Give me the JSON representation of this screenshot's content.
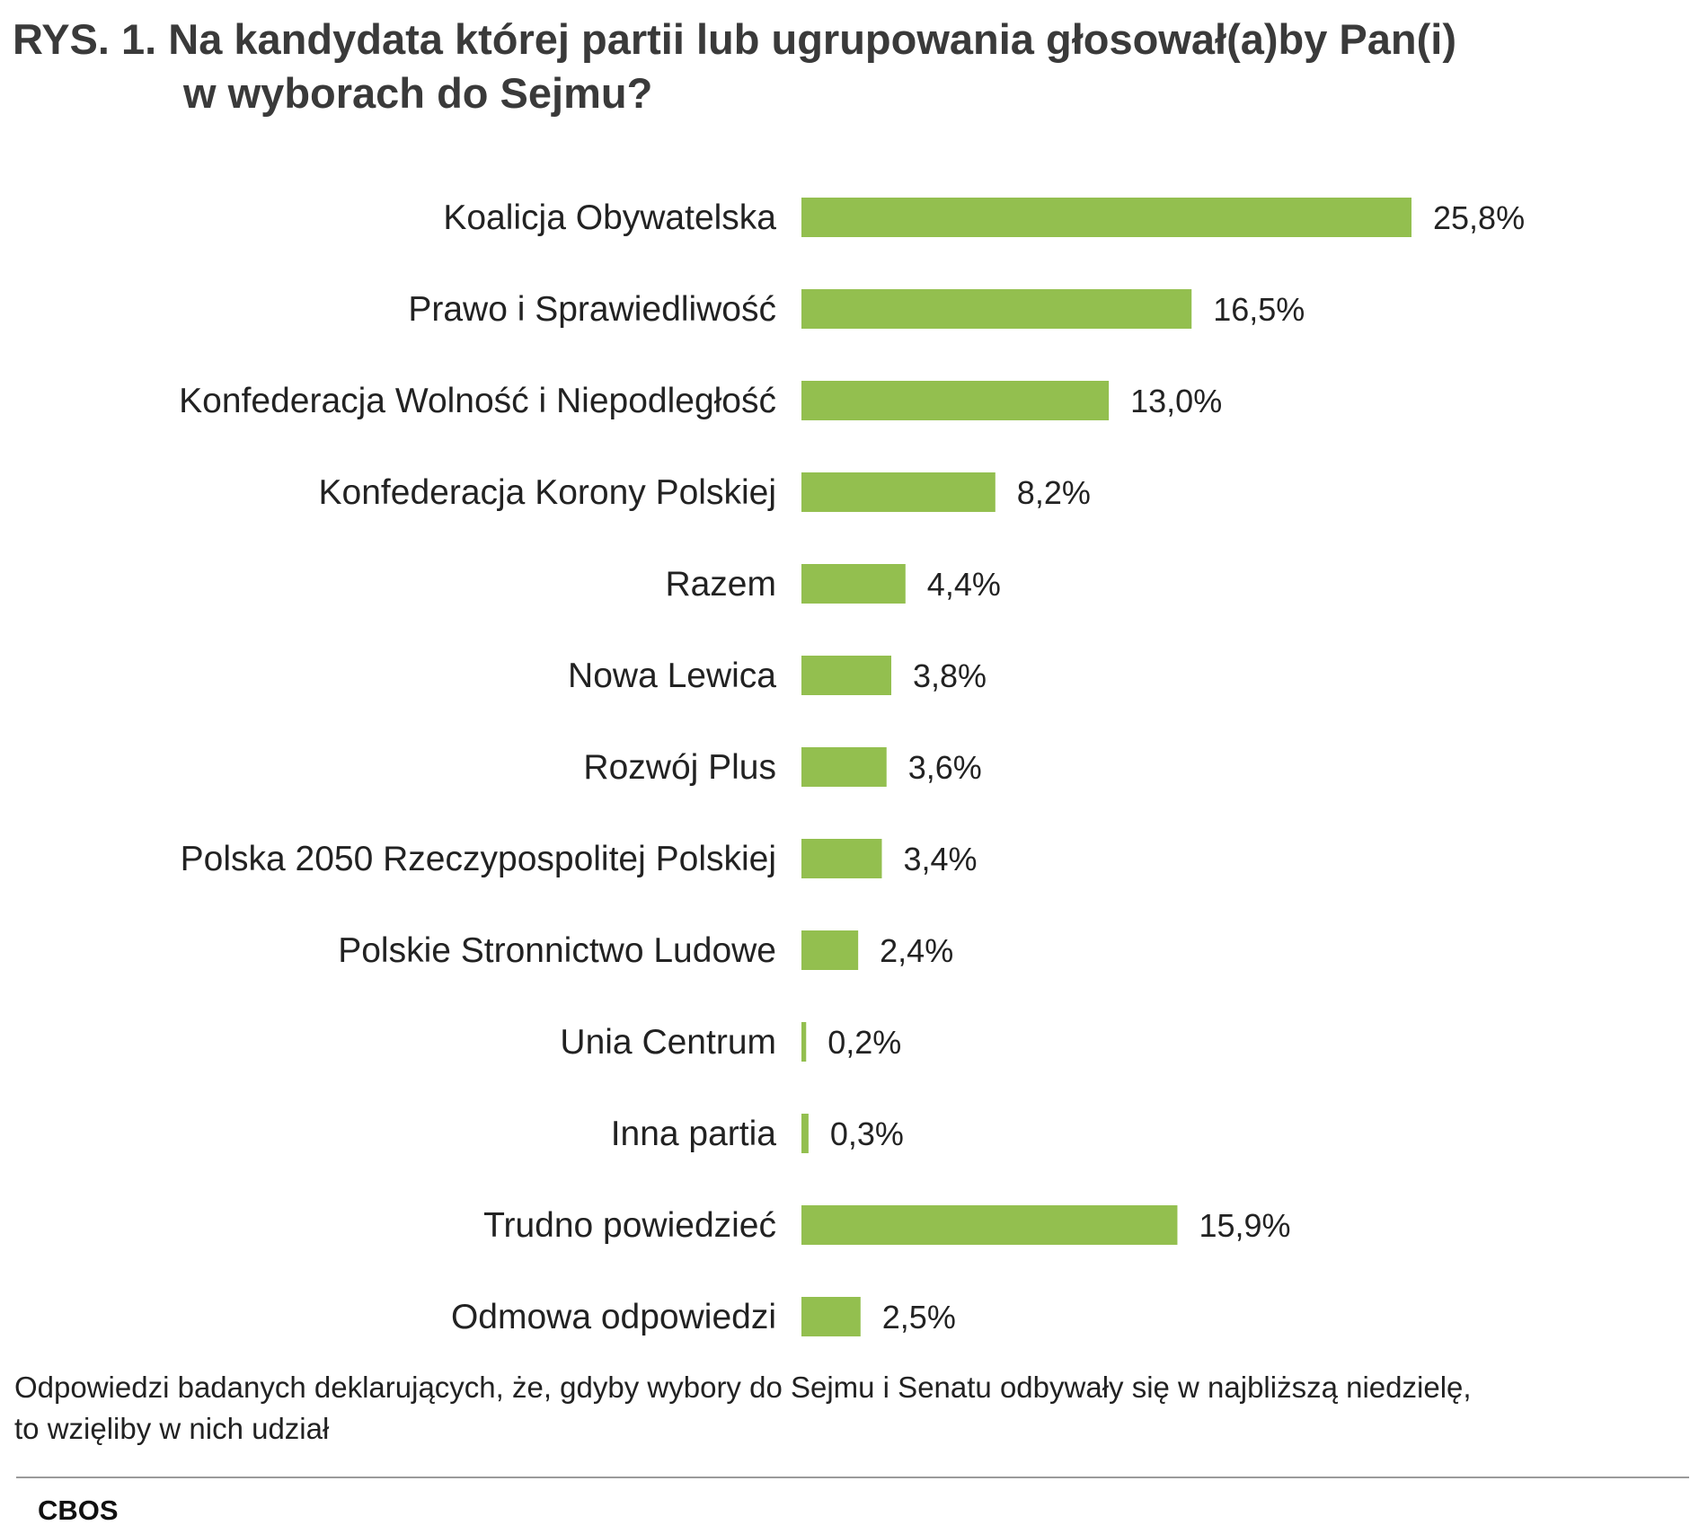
{
  "title": {
    "line1": "RYS. 1. Na kandydata której partii lub ugrupowania głosował(a)by Pan(i)",
    "line2": "w wyborach do Sejmu?"
  },
  "note": {
    "line1": "Odpowiedzi badanych deklarujących, że, gdyby wybory do Sejmu i Senatu odbywały się w najbliższą niedzielę,",
    "line2": "to wzięliby w nich udział"
  },
  "source": "CBOS",
  "colors": {
    "bar": "#93bf4f",
    "text": "#222222",
    "rule": "#9a9a9a"
  },
  "chart_data": {
    "type": "bar",
    "orientation": "horizontal",
    "categories": [
      "Koalicja Obywatelska",
      "Prawo i Sprawiedliwość",
      "Konfederacja Wolność i Niepodległość",
      "Konfederacja Korony Polskiej",
      "Razem",
      "Nowa Lewica",
      "Rozwój Plus",
      "Polska 2050 Rzeczypospolitej Polskiej",
      "Polskie Stronnictwo Ludowe",
      "Unia Centrum",
      "Inna partia",
      "Trudno powiedzieć",
      "Odmowa odpowiedzi"
    ],
    "values": [
      25.8,
      16.5,
      13.0,
      8.2,
      4.4,
      3.8,
      3.6,
      3.4,
      2.4,
      0.2,
      0.3,
      15.9,
      2.5
    ],
    "value_labels": [
      "25,8%",
      "16,5%",
      "13,0%",
      "8,2%",
      "4,4%",
      "3,8%",
      "3,6%",
      "3,4%",
      "2,4%",
      "0,2%",
      "0,3%",
      "15,9%",
      "2,5%"
    ],
    "unit": "%",
    "xlim": [
      0,
      25.8
    ],
    "grid": false,
    "legend": "none"
  }
}
